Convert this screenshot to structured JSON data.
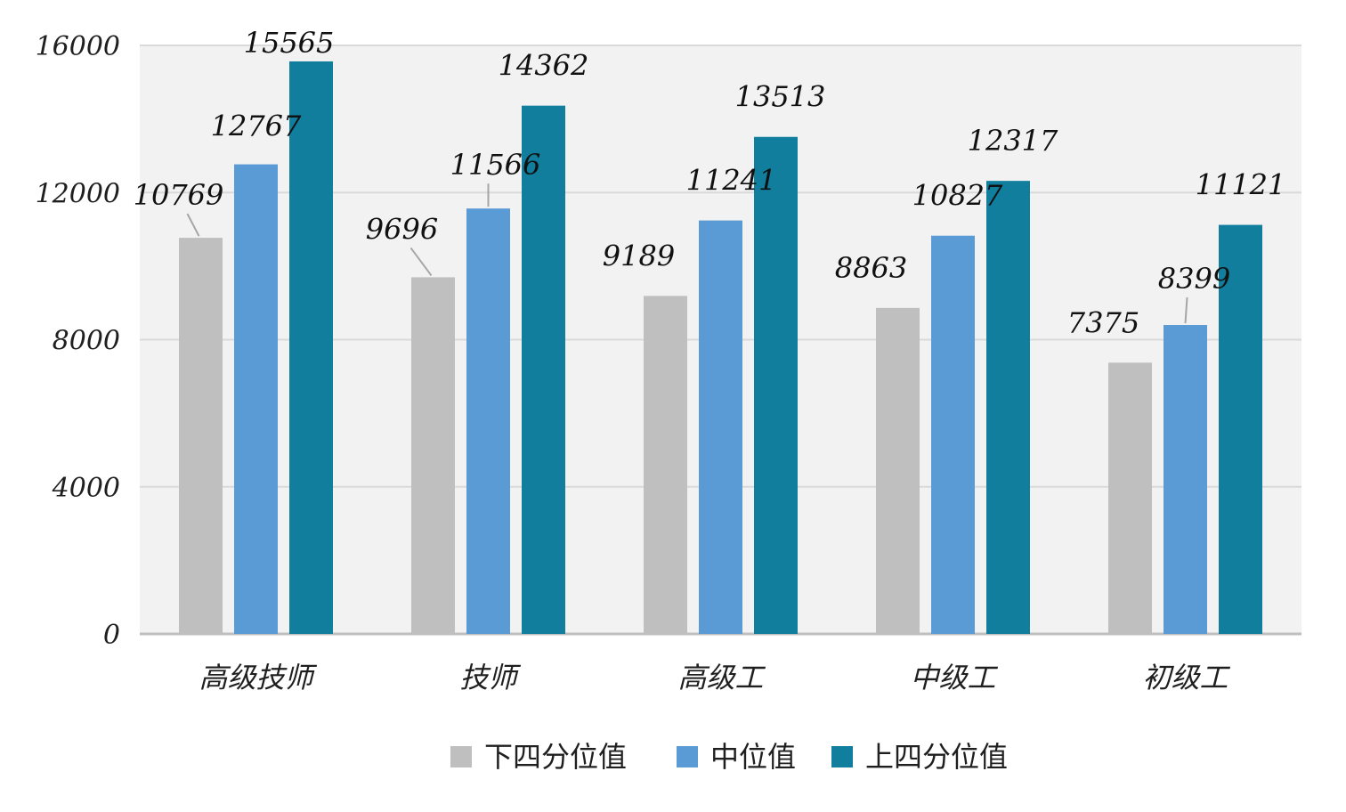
{
  "chart_data": {
    "type": "bar",
    "categories": [
      "高级技师",
      "技师",
      "高级工",
      "中级工",
      "初级工"
    ],
    "series": [
      {
        "name": "下四分位值",
        "values": [
          10769,
          9696,
          9189,
          8863,
          7375
        ],
        "color": "#bfbfbf"
      },
      {
        "name": "中位值",
        "values": [
          12767,
          11566,
          11241,
          10827,
          8399
        ],
        "color": "#5b9bd5"
      },
      {
        "name": "上四分位值",
        "values": [
          15565,
          14362,
          13513,
          12317,
          11121
        ],
        "color": "#117e9e"
      }
    ],
    "yticks": [
      0,
      4000,
      8000,
      12000,
      16000
    ],
    "ylim": [
      0,
      16000
    ],
    "grid": true,
    "legend": "bottom-center",
    "plot_background": "#f2f2f2",
    "gridline_color": "#d9d9d9"
  }
}
